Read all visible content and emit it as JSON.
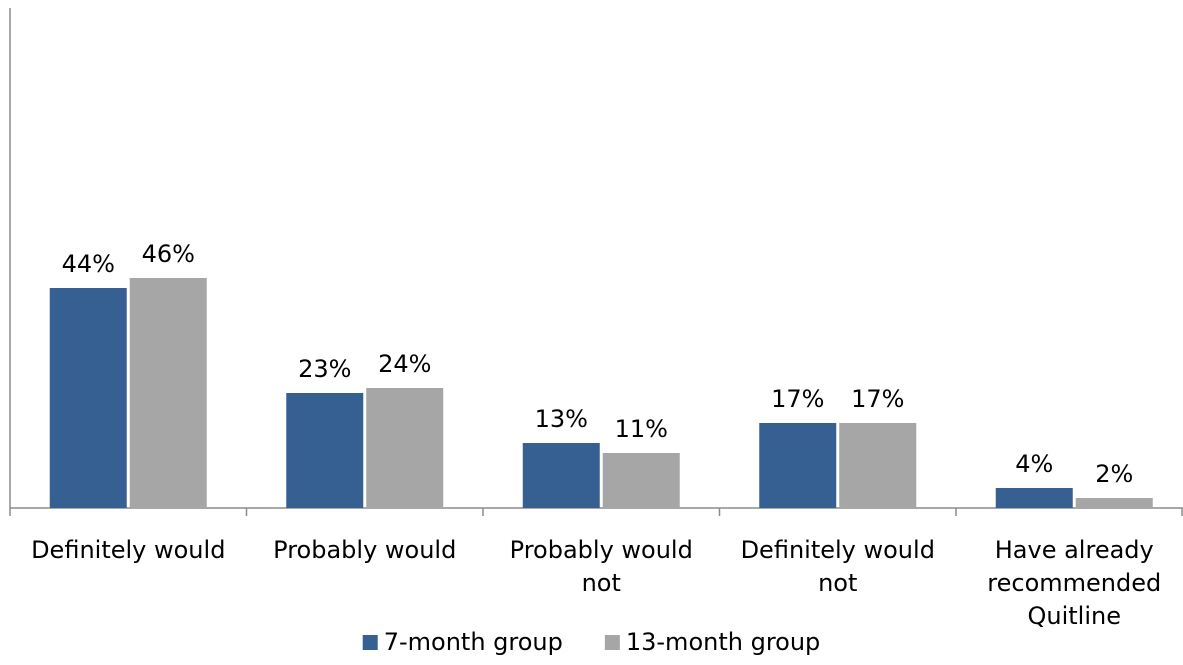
{
  "chart_data": {
    "type": "bar",
    "categories": [
      [
        "Definitely would"
      ],
      [
        "Probably would"
      ],
      [
        "Probably would",
        "not"
      ],
      [
        "Definitely would",
        "not"
      ],
      [
        "Have already",
        "recommended",
        "Quitline"
      ]
    ],
    "series": [
      {
        "name": "7-month group",
        "color": "#376092",
        "values": [
          44,
          23,
          13,
          17,
          4
        ],
        "labels": [
          "44%",
          "23%",
          "13%",
          "17%",
          "4%"
        ]
      },
      {
        "name": "13-month group",
        "color": "#a6a6a6",
        "values": [
          46,
          24,
          11,
          17,
          2
        ],
        "labels": [
          "46%",
          "24%",
          "11%",
          "17%",
          "2%"
        ]
      }
    ],
    "ylim": [
      0,
      100
    ],
    "grid": false,
    "legend": "bottom",
    "axis_color": "#8c8c8c"
  }
}
